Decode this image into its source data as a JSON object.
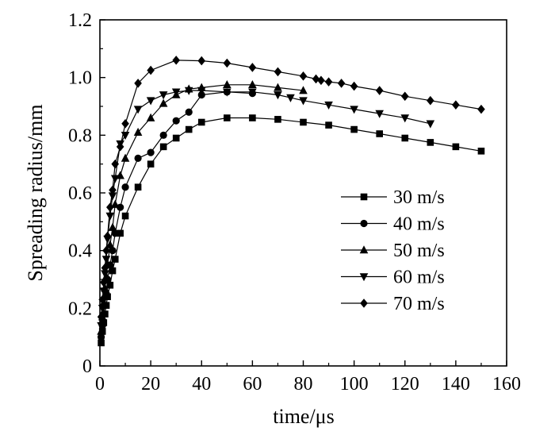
{
  "chart_data": {
    "type": "line",
    "title": "",
    "xlabel": "time/μs",
    "ylabel": "Spreading radius/mm",
    "xlim": [
      0,
      160
    ],
    "ylim": [
      0,
      1.2
    ],
    "xticks": [
      0,
      20,
      40,
      60,
      80,
      100,
      120,
      140,
      160
    ],
    "yticks": [
      0,
      0.2,
      0.4,
      0.6,
      0.8,
      1.0,
      1.2
    ],
    "xtick_labels": [
      "0",
      "20",
      "40",
      "60",
      "80",
      "100",
      "120",
      "140",
      "160"
    ],
    "ytick_labels": [
      "0",
      "0.2",
      "0.4",
      "0.6",
      "0.8",
      "1.0",
      "1.2"
    ],
    "grid": false,
    "legend_position": "center-right",
    "series": [
      {
        "name": "30 m/s",
        "marker": "square",
        "x": [
          0.5,
          1,
          1.5,
          2,
          2.5,
          3,
          4,
          5,
          6,
          8,
          10,
          15,
          20,
          25,
          30,
          35,
          40,
          50,
          60,
          70,
          80,
          90,
          100,
          110,
          120,
          130,
          140,
          150
        ],
        "y": [
          0.08,
          0.12,
          0.15,
          0.18,
          0.21,
          0.24,
          0.28,
          0.33,
          0.37,
          0.46,
          0.52,
          0.62,
          0.7,
          0.76,
          0.79,
          0.82,
          0.845,
          0.86,
          0.86,
          0.855,
          0.845,
          0.835,
          0.82,
          0.805,
          0.79,
          0.775,
          0.76,
          0.745
        ]
      },
      {
        "name": "40 m/s",
        "marker": "circle",
        "x": [
          0.5,
          1,
          1.5,
          2,
          2.5,
          3,
          4,
          5,
          6,
          8,
          10,
          15,
          20,
          25,
          30,
          35,
          40,
          50,
          60
        ],
        "y": [
          0.1,
          0.14,
          0.18,
          0.21,
          0.25,
          0.3,
          0.35,
          0.4,
          0.46,
          0.55,
          0.62,
          0.72,
          0.74,
          0.8,
          0.85,
          0.88,
          0.94,
          0.95,
          0.945
        ]
      },
      {
        "name": "50 m/s",
        "marker": "triangle-up",
        "x": [
          0.5,
          1,
          1.5,
          2,
          2.5,
          3,
          4,
          5,
          6,
          8,
          10,
          15,
          20,
          25,
          30,
          35,
          40,
          50,
          60,
          70,
          80
        ],
        "y": [
          0.12,
          0.17,
          0.22,
          0.27,
          0.31,
          0.35,
          0.42,
          0.48,
          0.56,
          0.66,
          0.72,
          0.81,
          0.86,
          0.91,
          0.94,
          0.96,
          0.965,
          0.975,
          0.975,
          0.965,
          0.955
        ]
      },
      {
        "name": "60 m/s",
        "marker": "triangle-down",
        "x": [
          0.5,
          1,
          1.5,
          2,
          2.5,
          3,
          4,
          5,
          6,
          8,
          10,
          15,
          20,
          25,
          30,
          35,
          40,
          50,
          60,
          70,
          75,
          80,
          90,
          100,
          110,
          120,
          130
        ],
        "y": [
          0.14,
          0.2,
          0.26,
          0.32,
          0.37,
          0.44,
          0.52,
          0.59,
          0.65,
          0.77,
          0.8,
          0.89,
          0.92,
          0.94,
          0.95,
          0.955,
          0.955,
          0.95,
          0.95,
          0.94,
          0.93,
          0.92,
          0.905,
          0.89,
          0.875,
          0.86,
          0.84
        ]
      },
      {
        "name": "70 m/s",
        "marker": "diamond",
        "x": [
          0.5,
          1,
          1.5,
          2,
          2.5,
          3,
          4,
          5,
          6,
          8,
          10,
          15,
          20,
          30,
          40,
          50,
          60,
          70,
          80,
          85,
          87,
          90,
          95,
          100,
          110,
          120,
          130,
          140,
          150
        ],
        "y": [
          0.17,
          0.23,
          0.29,
          0.34,
          0.4,
          0.45,
          0.55,
          0.61,
          0.7,
          0.76,
          0.84,
          0.98,
          1.025,
          1.06,
          1.058,
          1.05,
          1.035,
          1.02,
          1.005,
          0.995,
          0.99,
          0.985,
          0.98,
          0.97,
          0.955,
          0.935,
          0.92,
          0.905,
          0.89
        ]
      }
    ]
  }
}
